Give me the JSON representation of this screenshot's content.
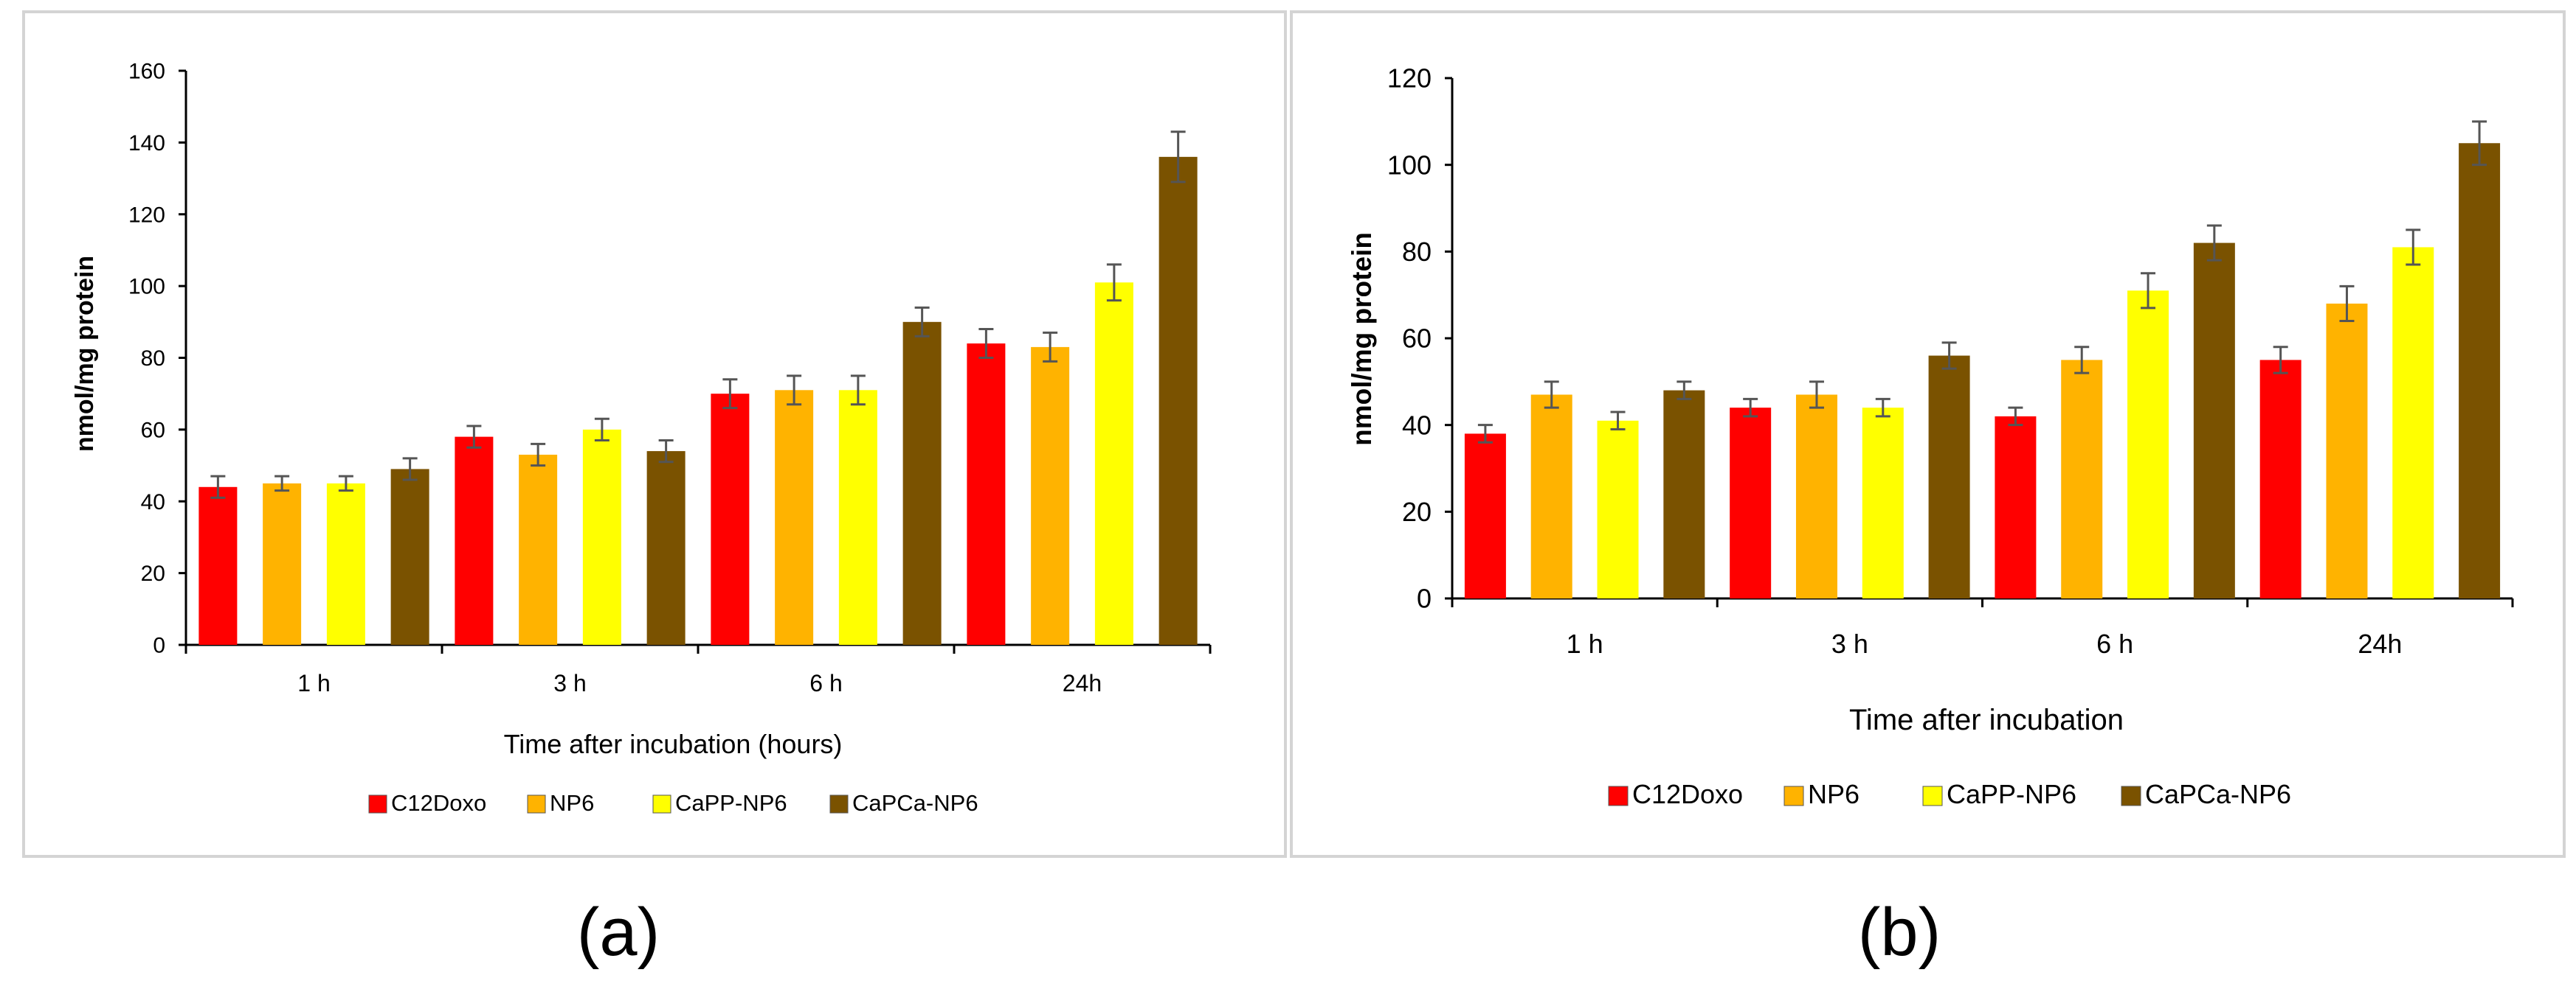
{
  "colors": {
    "series": [
      "#ff0000",
      "#ffb300",
      "#ffff00",
      "#7a5200"
    ],
    "panel_border": "#d4d4d4",
    "axis": "#000000",
    "errorbar": "#555555"
  },
  "panels": [
    {
      "id": "a",
      "caption": "(a)"
    },
    {
      "id": "b",
      "caption": "(b)"
    }
  ],
  "chart_data": [
    {
      "type": "bar",
      "panel_label": "(a)",
      "title": "",
      "xlabel": "Time after incubation (hours)",
      "ylabel": "nmol/mg protein",
      "ylim": [
        0,
        160
      ],
      "yticks": [
        0,
        20,
        40,
        60,
        80,
        100,
        120,
        140,
        160
      ],
      "categories": [
        "1 h",
        "3 h",
        "6 h",
        "24h"
      ],
      "legend_position": "bottom",
      "grid": false,
      "series": [
        {
          "name": "C12Doxo",
          "values": [
            44,
            58,
            70,
            84
          ],
          "errors": [
            3,
            3,
            4,
            4
          ]
        },
        {
          "name": "NP6",
          "values": [
            45,
            53,
            71,
            83
          ],
          "errors": [
            2,
            3,
            4,
            4
          ]
        },
        {
          "name": "CaPP-NP6",
          "values": [
            45,
            60,
            71,
            101
          ],
          "errors": [
            2,
            3,
            4,
            5
          ]
        },
        {
          "name": "CaPCa-NP6",
          "values": [
            49,
            54,
            90,
            136
          ],
          "errors": [
            3,
            3,
            4,
            7
          ]
        }
      ]
    },
    {
      "type": "bar",
      "panel_label": "(b)",
      "title": "",
      "xlabel": "Time after incubation",
      "ylabel": "nmol/mg protein",
      "ylim": [
        0,
        120
      ],
      "yticks": [
        0,
        20,
        40,
        60,
        80,
        100,
        120
      ],
      "categories": [
        "1 h",
        "3 h",
        "6 h",
        "24h"
      ],
      "legend_position": "bottom",
      "grid": false,
      "series": [
        {
          "name": "C12Doxo",
          "values": [
            38,
            44,
            42,
            55
          ],
          "errors": [
            2,
            2,
            2,
            3
          ]
        },
        {
          "name": "NP6",
          "values": [
            47,
            47,
            55,
            68
          ],
          "errors": [
            3,
            3,
            3,
            4
          ]
        },
        {
          "name": "CaPP-NP6",
          "values": [
            41,
            44,
            71,
            81
          ],
          "errors": [
            2,
            2,
            4,
            4
          ]
        },
        {
          "name": "CaPCa-NP6",
          "values": [
            48,
            56,
            82,
            105
          ],
          "errors": [
            2,
            3,
            4,
            5
          ]
        }
      ]
    }
  ]
}
